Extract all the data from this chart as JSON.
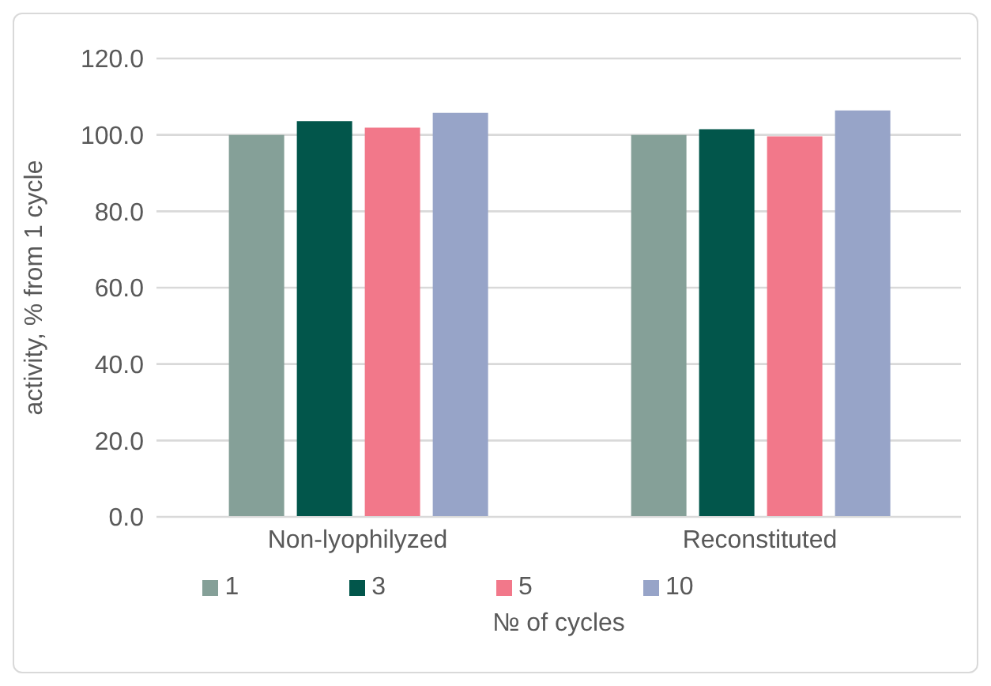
{
  "chart_data": {
    "type": "bar",
    "xlabel": "№ of cycles",
    "ylabel": "activity, % from 1 cycle",
    "categories": [
      "Non-lyophilyzed",
      "Reconstituted"
    ],
    "series": [
      {
        "name": "1",
        "color": "#85a098",
        "values": [
          100.0,
          100.0
        ]
      },
      {
        "name": "3",
        "color": "#02564b",
        "values": [
          103.6,
          101.5
        ]
      },
      {
        "name": "5",
        "color": "#f2788a",
        "values": [
          101.9,
          99.6
        ]
      },
      {
        "name": "10",
        "color": "#97a4c8",
        "values": [
          105.8,
          106.4
        ]
      }
    ],
    "ylim": [
      0,
      120
    ],
    "yticks": [
      {
        "value": 0,
        "label": "0.0"
      },
      {
        "value": 20,
        "label": "20.0"
      },
      {
        "value": 40,
        "label": "40.0"
      },
      {
        "value": 60,
        "label": "60.0"
      },
      {
        "value": 80,
        "label": "80.0"
      },
      {
        "value": 100,
        "label": "100.0"
      },
      {
        "value": 120,
        "label": "120.0"
      }
    ],
    "grid": "y",
    "legend": "bottom"
  }
}
